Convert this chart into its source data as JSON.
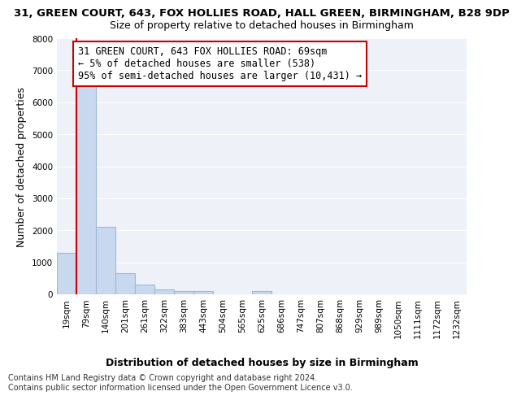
{
  "title_line1": "31, GREEN COURT, 643, FOX HOLLIES ROAD, HALL GREEN, BIRMINGHAM, B28 9DP",
  "title_line2": "Size of property relative to detached houses in Birmingham",
  "xlabel": "Distribution of detached houses by size in Birmingham",
  "ylabel": "Number of detached properties",
  "categories": [
    "19sqm",
    "79sqm",
    "140sqm",
    "201sqm",
    "261sqm",
    "322sqm",
    "383sqm",
    "443sqm",
    "504sqm",
    "565sqm",
    "625sqm",
    "686sqm",
    "747sqm",
    "807sqm",
    "868sqm",
    "929sqm",
    "989sqm",
    "1050sqm",
    "1111sqm",
    "1172sqm",
    "1232sqm"
  ],
  "values": [
    1300,
    6600,
    2100,
    650,
    300,
    150,
    100,
    100,
    0,
    0,
    100,
    0,
    0,
    0,
    0,
    0,
    0,
    0,
    0,
    0,
    0
  ],
  "bar_color": "#c8d8ee",
  "bar_edge_color": "#a0b8d8",
  "subject_line_color": "#cc0000",
  "annotation_text": "31 GREEN COURT, 643 FOX HOLLIES ROAD: 69sqm\n← 5% of detached houses are smaller (538)\n95% of semi-detached houses are larger (10,431) →",
  "annotation_box_color": "#ffffff",
  "annotation_box_edge": "#cc0000",
  "ylim": [
    0,
    8000
  ],
  "yticks": [
    0,
    1000,
    2000,
    3000,
    4000,
    5000,
    6000,
    7000,
    8000
  ],
  "footer_line1": "Contains HM Land Registry data © Crown copyright and database right 2024.",
  "footer_line2": "Contains public sector information licensed under the Open Government Licence v3.0.",
  "bg_color": "#ffffff",
  "plot_bg_color": "#eef2f8",
  "grid_color": "#ffffff",
  "title_fontsize": 9.5,
  "subtitle_fontsize": 9,
  "ylabel_fontsize": 9,
  "xlabel_fontsize": 9,
  "tick_fontsize": 7.5,
  "annot_fontsize": 8.5,
  "footer_fontsize": 7
}
